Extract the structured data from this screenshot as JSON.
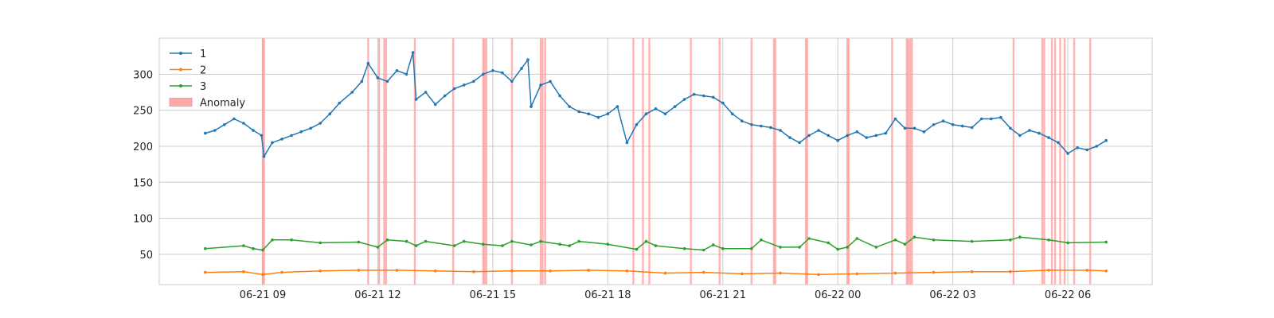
{
  "chart_data": {
    "type": "line",
    "x_start": "2024-06-21T07:30",
    "x_end": "2024-06-22T07:00",
    "xlim": [
      "2024-06-21T06:18",
      "2024-06-22T08:12"
    ],
    "ylim": [
      8,
      350
    ],
    "grid": true,
    "legend_position": "top-left",
    "x_ticks": [
      {
        "t": "2024-06-21T09:00",
        "label": "06-21 09"
      },
      {
        "t": "2024-06-21T12:00",
        "label": "06-21 12"
      },
      {
        "t": "2024-06-21T15:00",
        "label": "06-21 15"
      },
      {
        "t": "2024-06-21T18:00",
        "label": "06-21 18"
      },
      {
        "t": "2024-06-21T21:00",
        "label": "06-21 21"
      },
      {
        "t": "2024-06-22T00:00",
        "label": "06-22 00"
      },
      {
        "t": "2024-06-22T03:00",
        "label": "06-22 03"
      },
      {
        "t": "2024-06-22T06:00",
        "label": "06-22 06"
      }
    ],
    "y_ticks": [
      {
        "v": 50,
        "label": "50"
      },
      {
        "v": 100,
        "label": "100"
      },
      {
        "v": 150,
        "label": "150"
      },
      {
        "v": 200,
        "label": "200"
      },
      {
        "v": 250,
        "label": "250"
      },
      {
        "v": 300,
        "label": "300"
      }
    ],
    "series": [
      {
        "name": "1",
        "color": "#1f77b4",
        "points": [
          [
            "2024-06-21T07:30",
            218
          ],
          [
            "2024-06-21T07:45",
            222
          ],
          [
            "2024-06-21T08:00",
            230
          ],
          [
            "2024-06-21T08:15",
            238
          ],
          [
            "2024-06-21T08:30",
            232
          ],
          [
            "2024-06-21T08:45",
            222
          ],
          [
            "2024-06-21T08:58",
            215
          ],
          [
            "2024-06-21T09:02",
            186
          ],
          [
            "2024-06-21T09:15",
            205
          ],
          [
            "2024-06-21T09:30",
            210
          ],
          [
            "2024-06-21T09:45",
            215
          ],
          [
            "2024-06-21T10:00",
            220
          ],
          [
            "2024-06-21T10:15",
            225
          ],
          [
            "2024-06-21T10:30",
            232
          ],
          [
            "2024-06-21T10:45",
            245
          ],
          [
            "2024-06-21T11:00",
            260
          ],
          [
            "2024-06-21T11:20",
            275
          ],
          [
            "2024-06-21T11:35",
            290
          ],
          [
            "2024-06-21T11:45",
            315
          ],
          [
            "2024-06-21T12:00",
            295
          ],
          [
            "2024-06-21T12:15",
            290
          ],
          [
            "2024-06-21T12:30",
            305
          ],
          [
            "2024-06-21T12:45",
            300
          ],
          [
            "2024-06-21T12:55",
            330
          ],
          [
            "2024-06-21T13:00",
            265
          ],
          [
            "2024-06-21T13:15",
            275
          ],
          [
            "2024-06-21T13:30",
            258
          ],
          [
            "2024-06-21T13:45",
            270
          ],
          [
            "2024-06-21T14:00",
            280
          ],
          [
            "2024-06-21T14:15",
            285
          ],
          [
            "2024-06-21T14:30",
            290
          ],
          [
            "2024-06-21T14:45",
            300
          ],
          [
            "2024-06-21T15:00",
            305
          ],
          [
            "2024-06-21T15:15",
            302
          ],
          [
            "2024-06-21T15:30",
            290
          ],
          [
            "2024-06-21T15:45",
            308
          ],
          [
            "2024-06-21T15:55",
            320
          ],
          [
            "2024-06-21T16:00",
            255
          ],
          [
            "2024-06-21T16:15",
            285
          ],
          [
            "2024-06-21T16:30",
            290
          ],
          [
            "2024-06-21T16:45",
            270
          ],
          [
            "2024-06-21T17:00",
            255
          ],
          [
            "2024-06-21T17:15",
            248
          ],
          [
            "2024-06-21T17:30",
            245
          ],
          [
            "2024-06-21T17:45",
            240
          ],
          [
            "2024-06-21T18:00",
            245
          ],
          [
            "2024-06-21T18:15",
            255
          ],
          [
            "2024-06-21T18:30",
            205
          ],
          [
            "2024-06-21T18:45",
            230
          ],
          [
            "2024-06-21T19:00",
            245
          ],
          [
            "2024-06-21T19:15",
            252
          ],
          [
            "2024-06-21T19:30",
            245
          ],
          [
            "2024-06-21T19:45",
            255
          ],
          [
            "2024-06-21T20:00",
            265
          ],
          [
            "2024-06-21T20:15",
            272
          ],
          [
            "2024-06-21T20:30",
            270
          ],
          [
            "2024-06-21T20:45",
            268
          ],
          [
            "2024-06-21T21:00",
            260
          ],
          [
            "2024-06-21T21:15",
            245
          ],
          [
            "2024-06-21T21:30",
            235
          ],
          [
            "2024-06-21T21:45",
            230
          ],
          [
            "2024-06-21T22:00",
            228
          ],
          [
            "2024-06-21T22:15",
            226
          ],
          [
            "2024-06-21T22:30",
            222
          ],
          [
            "2024-06-21T22:45",
            212
          ],
          [
            "2024-06-21T23:00",
            205
          ],
          [
            "2024-06-21T23:15",
            215
          ],
          [
            "2024-06-21T23:30",
            222
          ],
          [
            "2024-06-21T23:45",
            215
          ],
          [
            "2024-06-22T00:00",
            208
          ],
          [
            "2024-06-22T00:15",
            215
          ],
          [
            "2024-06-22T00:30",
            220
          ],
          [
            "2024-06-22T00:45",
            212
          ],
          [
            "2024-06-22T01:00",
            215
          ],
          [
            "2024-06-22T01:15",
            218
          ],
          [
            "2024-06-22T01:30",
            238
          ],
          [
            "2024-06-22T01:45",
            225
          ],
          [
            "2024-06-22T02:00",
            225
          ],
          [
            "2024-06-22T02:15",
            220
          ],
          [
            "2024-06-22T02:30",
            230
          ],
          [
            "2024-06-22T02:45",
            235
          ],
          [
            "2024-06-22T03:00",
            230
          ],
          [
            "2024-06-22T03:15",
            228
          ],
          [
            "2024-06-22T03:30",
            226
          ],
          [
            "2024-06-22T03:45",
            238
          ],
          [
            "2024-06-22T04:00",
            238
          ],
          [
            "2024-06-22T04:15",
            240
          ],
          [
            "2024-06-22T04:30",
            225
          ],
          [
            "2024-06-22T04:45",
            215
          ],
          [
            "2024-06-22T05:00",
            222
          ],
          [
            "2024-06-22T05:15",
            218
          ],
          [
            "2024-06-22T05:30",
            212
          ],
          [
            "2024-06-22T05:45",
            205
          ],
          [
            "2024-06-22T06:00",
            190
          ],
          [
            "2024-06-22T06:15",
            198
          ],
          [
            "2024-06-22T06:30",
            195
          ],
          [
            "2024-06-22T06:45",
            200
          ],
          [
            "2024-06-22T07:00",
            208
          ]
        ]
      },
      {
        "name": "2",
        "color": "#ff7f0e",
        "points": [
          [
            "2024-06-21T07:30",
            25
          ],
          [
            "2024-06-21T08:30",
            26
          ],
          [
            "2024-06-21T09:00",
            22
          ],
          [
            "2024-06-21T09:30",
            25
          ],
          [
            "2024-06-21T10:30",
            27
          ],
          [
            "2024-06-21T11:30",
            28
          ],
          [
            "2024-06-21T12:30",
            28
          ],
          [
            "2024-06-21T13:30",
            27
          ],
          [
            "2024-06-21T14:30",
            26
          ],
          [
            "2024-06-21T15:30",
            27
          ],
          [
            "2024-06-21T16:30",
            27
          ],
          [
            "2024-06-21T17:30",
            28
          ],
          [
            "2024-06-21T18:30",
            27
          ],
          [
            "2024-06-21T19:30",
            24
          ],
          [
            "2024-06-21T20:30",
            25
          ],
          [
            "2024-06-21T21:30",
            23
          ],
          [
            "2024-06-21T22:30",
            24
          ],
          [
            "2024-06-21T23:30",
            22
          ],
          [
            "2024-06-22T00:30",
            23
          ],
          [
            "2024-06-22T01:30",
            24
          ],
          [
            "2024-06-22T02:30",
            25
          ],
          [
            "2024-06-22T03:30",
            26
          ],
          [
            "2024-06-22T04:30",
            26
          ],
          [
            "2024-06-22T05:30",
            28
          ],
          [
            "2024-06-22T06:30",
            28
          ],
          [
            "2024-06-22T07:00",
            27
          ]
        ]
      },
      {
        "name": "3",
        "color": "#2ca02c",
        "points": [
          [
            "2024-06-21T07:30",
            58
          ],
          [
            "2024-06-21T08:30",
            62
          ],
          [
            "2024-06-21T08:45",
            58
          ],
          [
            "2024-06-21T09:00",
            56
          ],
          [
            "2024-06-21T09:15",
            70
          ],
          [
            "2024-06-21T09:45",
            70
          ],
          [
            "2024-06-21T10:30",
            66
          ],
          [
            "2024-06-21T11:30",
            67
          ],
          [
            "2024-06-21T12:00",
            60
          ],
          [
            "2024-06-21T12:15",
            70
          ],
          [
            "2024-06-21T12:45",
            68
          ],
          [
            "2024-06-21T13:00",
            62
          ],
          [
            "2024-06-21T13:15",
            68
          ],
          [
            "2024-06-21T14:00",
            62
          ],
          [
            "2024-06-21T14:15",
            68
          ],
          [
            "2024-06-21T14:45",
            64
          ],
          [
            "2024-06-21T15:15",
            62
          ],
          [
            "2024-06-21T15:30",
            68
          ],
          [
            "2024-06-21T16:00",
            63
          ],
          [
            "2024-06-21T16:15",
            68
          ],
          [
            "2024-06-21T16:45",
            64
          ],
          [
            "2024-06-21T17:00",
            62
          ],
          [
            "2024-06-21T17:15",
            68
          ],
          [
            "2024-06-21T18:00",
            64
          ],
          [
            "2024-06-21T18:45",
            57
          ],
          [
            "2024-06-21T19:00",
            68
          ],
          [
            "2024-06-21T19:15",
            62
          ],
          [
            "2024-06-21T20:00",
            58
          ],
          [
            "2024-06-21T20:30",
            56
          ],
          [
            "2024-06-21T20:45",
            63
          ],
          [
            "2024-06-21T21:00",
            58
          ],
          [
            "2024-06-21T21:45",
            58
          ],
          [
            "2024-06-21T22:00",
            70
          ],
          [
            "2024-06-21T22:30",
            60
          ],
          [
            "2024-06-21T23:00",
            60
          ],
          [
            "2024-06-21T23:15",
            72
          ],
          [
            "2024-06-21T23:45",
            66
          ],
          [
            "2024-06-22T00:00",
            57
          ],
          [
            "2024-06-22T00:15",
            60
          ],
          [
            "2024-06-22T00:30",
            72
          ],
          [
            "2024-06-22T01:00",
            60
          ],
          [
            "2024-06-22T01:30",
            70
          ],
          [
            "2024-06-22T01:45",
            64
          ],
          [
            "2024-06-22T02:00",
            74
          ],
          [
            "2024-06-22T02:30",
            70
          ],
          [
            "2024-06-22T03:30",
            68
          ],
          [
            "2024-06-22T04:30",
            70
          ],
          [
            "2024-06-22T04:45",
            74
          ],
          [
            "2024-06-22T05:30",
            70
          ],
          [
            "2024-06-22T06:00",
            66
          ],
          [
            "2024-06-22T07:00",
            67
          ]
        ]
      }
    ],
    "anomaly": {
      "name": "Anomaly",
      "color": "#ff9999",
      "times": [
        "2024-06-21T09:00",
        "2024-06-21T09:02",
        "2024-06-21T11:45",
        "2024-06-21T12:02",
        "2024-06-21T12:10",
        "2024-06-21T12:13",
        "2024-06-21T12:58",
        "2024-06-21T13:58",
        "2024-06-21T14:45",
        "2024-06-21T14:47",
        "2024-06-21T14:50",
        "2024-06-21T15:30",
        "2024-06-21T16:15",
        "2024-06-21T16:18",
        "2024-06-21T16:22",
        "2024-06-21T18:40",
        "2024-06-21T18:55",
        "2024-06-21T19:05",
        "2024-06-21T20:10",
        "2024-06-21T20:55",
        "2024-06-21T21:45",
        "2024-06-21T22:20",
        "2024-06-21T22:22",
        "2024-06-21T23:10",
        "2024-06-21T23:12",
        "2024-06-22T00:15",
        "2024-06-22T00:17",
        "2024-06-22T01:25",
        "2024-06-22T01:48",
        "2024-06-22T01:50",
        "2024-06-22T01:53",
        "2024-06-22T01:56",
        "2024-06-22T04:35",
        "2024-06-22T05:20",
        "2024-06-22T05:23",
        "2024-06-22T05:35",
        "2024-06-22T05:40",
        "2024-06-22T05:48",
        "2024-06-22T05:55",
        "2024-06-22T06:10",
        "2024-06-22T06:35"
      ]
    }
  }
}
